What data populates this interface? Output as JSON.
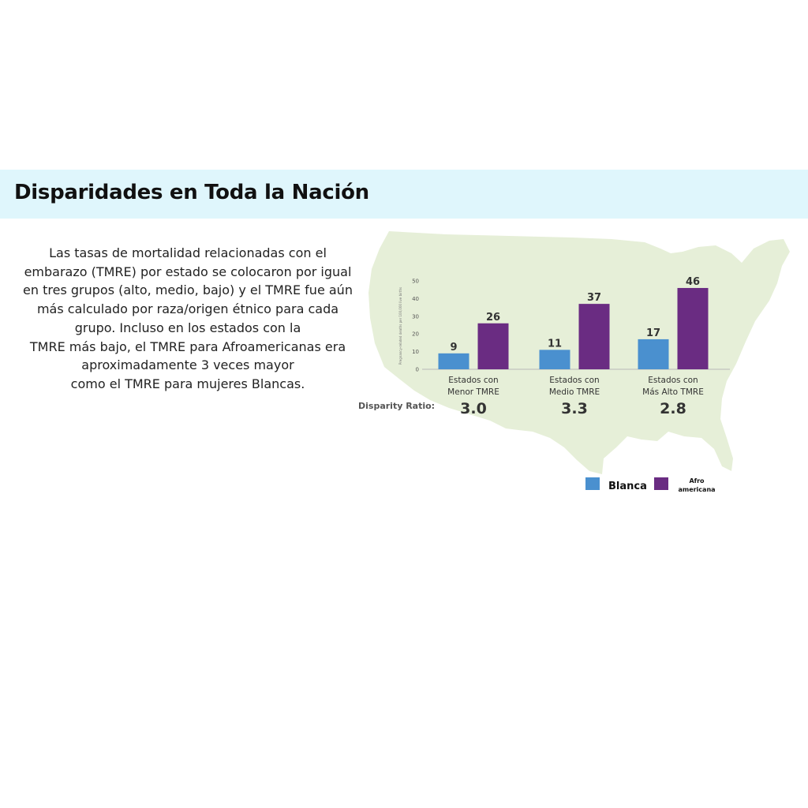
{
  "header": {
    "title": "Disparidades en Toda la Nación"
  },
  "body_text": [
    "Las tasas de mortalidad relacionadas con el",
    "embarazo (TMRE) por estado se colocaron por igual",
    "en tres grupos (alto, medio, bajo) y el TMRE fue aún",
    "más calculado por raza/origen étnico para cada",
    "grupo. Incluso en los estados con la",
    "TMRE más bajo, el TMRE para Afroamericanas era",
    "aproximadamente 3 veces mayor",
    "como el TMRE para mujeres Blancas."
  ],
  "chart_data": {
    "type": "bar",
    "ylabel": "Pregnancy-related deaths per 100,000 live births",
    "ylim": [
      0,
      50
    ],
    "yticks": [
      "0",
      "10",
      "20",
      "30",
      "40",
      "50"
    ],
    "categories": [
      [
        "Estados con",
        "Menor TMRE"
      ],
      [
        "Estados con",
        "Medio TMRE"
      ],
      [
        "Estados con",
        "Más Alto TMRE"
      ]
    ],
    "series": [
      {
        "name": "Blanca",
        "values": [
          9,
          11,
          17
        ],
        "color": "#4a90cf"
      },
      {
        "name": "Afro americana",
        "values": [
          26,
          37,
          46
        ],
        "color": "#6a2c82"
      }
    ],
    "disparity_label": "Disparity Ratio:",
    "disparity_ratios": [
      "3.0",
      "3.3",
      "2.8"
    ],
    "legend": {
      "placement": "bottom-right",
      "items": [
        "Blanca",
        "Afro",
        "americana"
      ]
    },
    "background_map_color": "#e6efd8"
  }
}
